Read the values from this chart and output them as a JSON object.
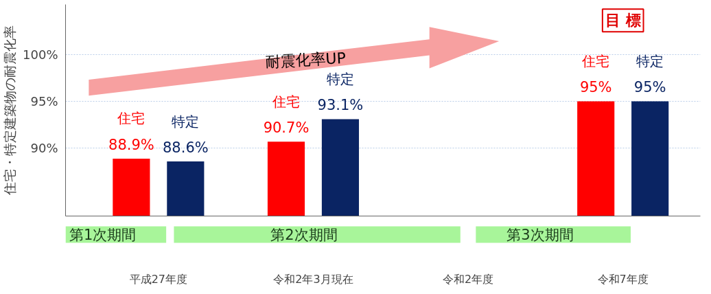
{
  "chart_data": {
    "type": "bar",
    "ylabel": "住宅・特定建築物の耐震化率",
    "categories": [
      "平成27年度",
      "令和2年3月現在",
      "令和2年度",
      "令和7年度"
    ],
    "series": [
      {
        "name": "住宅",
        "color": "#ff0000",
        "values": [
          88.9,
          90.7,
          null,
          95
        ],
        "value_labels": [
          "88.9%",
          "90.7%",
          null,
          "95%"
        ]
      },
      {
        "name": "特定",
        "color": "#0a2463",
        "values": [
          88.6,
          93.1,
          null,
          95
        ],
        "value_labels": [
          "88.6%",
          "93.1%",
          null,
          "95%"
        ]
      }
    ],
    "ylim": [
      82.8,
      105.3
    ],
    "yticks": [
      {
        "value": 90,
        "label": "90%"
      },
      {
        "value": 95,
        "label": "95%"
      },
      {
        "value": 100,
        "label": "100%"
      }
    ],
    "grid": "y",
    "annotations": [
      "耐震化率UP",
      "目 標",
      "第1次期間",
      "第2次期間",
      "第3次期間"
    ]
  }
}
